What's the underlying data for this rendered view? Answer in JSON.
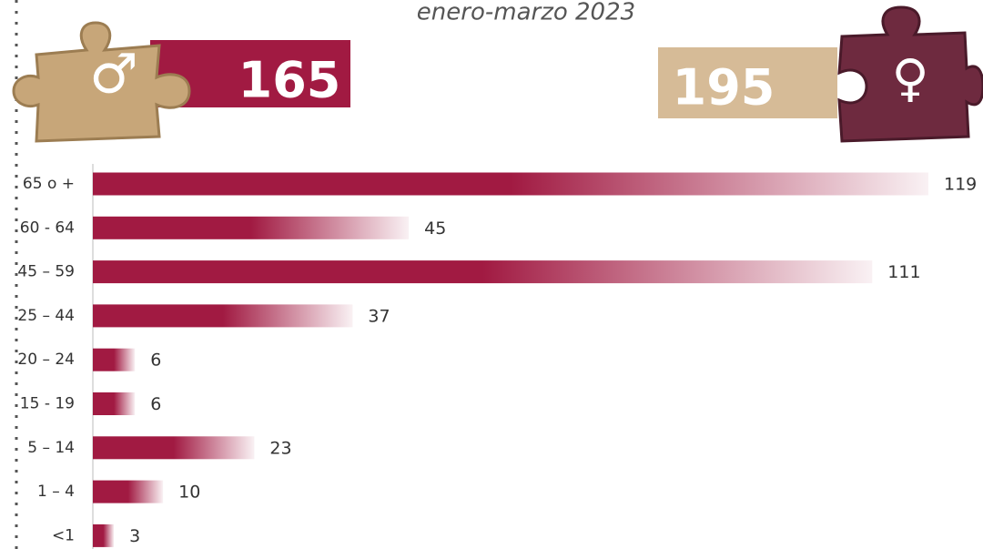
{
  "chart_data": {
    "type": "bar",
    "orientation": "horizontal",
    "subtitle": "enero-marzo 2023",
    "categories": [
      "65 o +",
      "60 - 64",
      "45 – 59",
      "25 – 44",
      "20 – 24",
      "15 - 19",
      "5 – 14",
      "1 – 4",
      "<1"
    ],
    "values": [
      119,
      45,
      111,
      37,
      6,
      6,
      23,
      10,
      3
    ],
    "color": "#a11a42",
    "totals": [
      {
        "value": 165,
        "color": "#a11a42"
      },
      {
        "value": 195,
        "color": "#d6bb97"
      }
    ]
  }
}
